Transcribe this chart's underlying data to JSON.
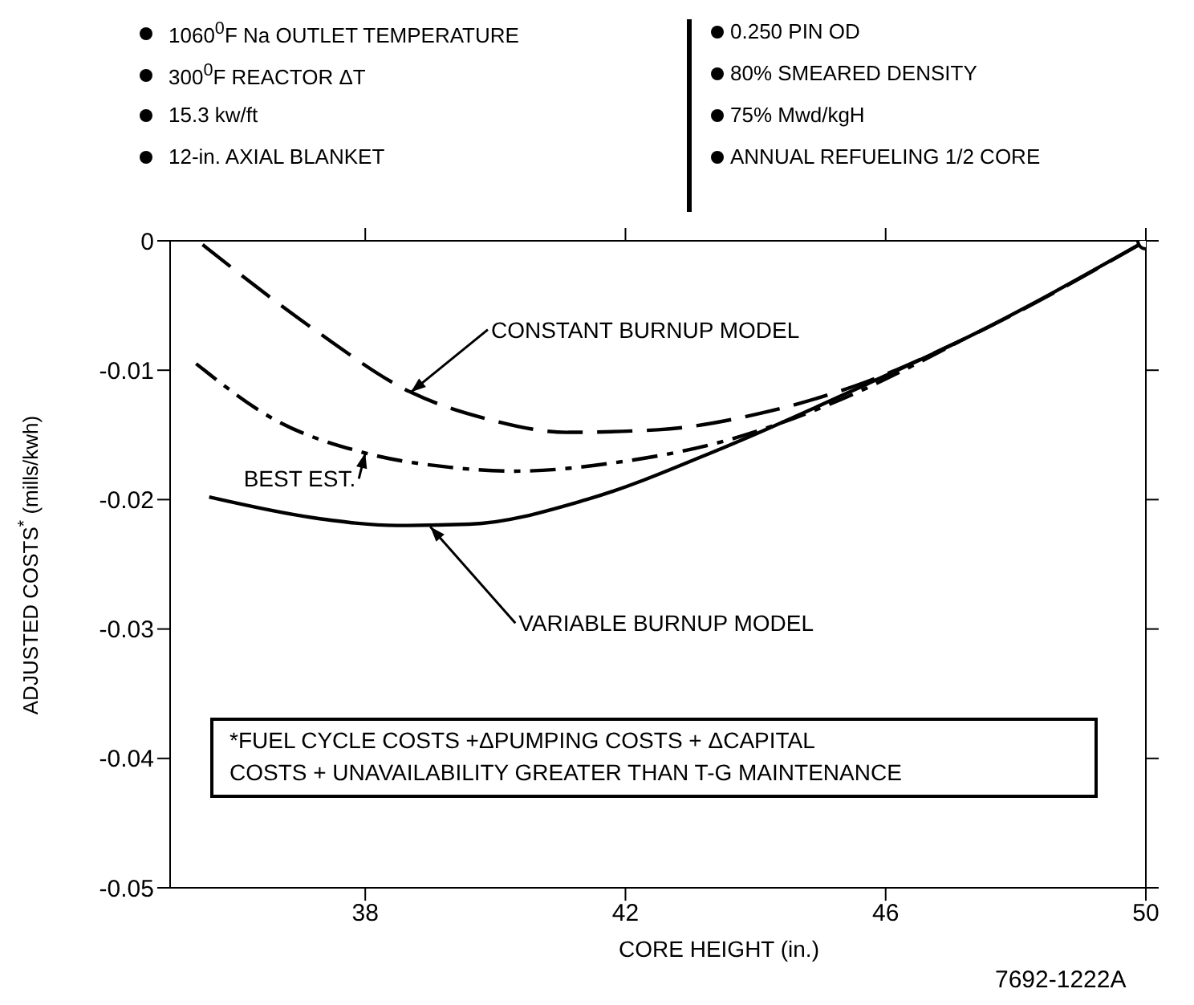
{
  "chart_data": {
    "type": "line",
    "xlabel": "CORE HEIGHT (in.)",
    "ylabel": "ADJUSTED COSTS$^{*}$ (mills/kwh)",
    "xlim": [
      35,
      50
    ],
    "xticks": [
      38,
      42,
      46,
      50
    ],
    "ylim": [
      -0.05,
      0
    ],
    "yticks": [
      -0.05,
      -0.04,
      -0.03,
      -0.02,
      -0.01,
      0
    ],
    "series": [
      {
        "color": "#000000",
        "line_style": "dashed",
        "x": [
          35.5,
          37.2,
          38.7,
          39.9,
          41.1,
          42.5,
          44.1,
          45.7,
          47.2,
          50
        ],
        "values": [
          -0.0003,
          -0.0068,
          -0.0117,
          -0.0138,
          -0.0148,
          -0.0146,
          -0.0133,
          -0.0109,
          -0.0076,
          0
        ]
      },
      {
        "color": "#000000",
        "line_style": "dashdot",
        "x": [
          35.4,
          36.6,
          38.0,
          39.3,
          40.3,
          41.9,
          43.5,
          45.2,
          47.2
        ],
        "values": [
          -0.0095,
          -0.0138,
          -0.0164,
          -0.0175,
          -0.0178,
          -0.0171,
          -0.0155,
          -0.0125,
          -0.0076
        ]
      },
      {
        "color": "#000000",
        "line_style": "solid",
        "x": [
          35.6,
          37.2,
          38.5,
          39.6,
          41.4,
          43.5,
          45.7,
          47.2,
          50
        ],
        "values": [
          -0.0198,
          -0.0214,
          -0.022,
          -0.0219,
          -0.02,
          -0.016,
          -0.0111,
          -0.0076,
          0
        ]
      },
      {
        "type": "scatter",
        "color": "#000000",
        "marker": "circle",
        "x": [
          50
        ],
        "values": [
          0
        ]
      }
    ],
    "annotations": [
      "1060$^{0}$F Na OUTLET TEMPERATURE",
      "300$^{0}$F REACTOR ΔT",
      "15.3 kw/ft",
      "12-in. AXIAL BLANKET",
      "0.250 PIN OD",
      "80% SMEARED DENSITY",
      "75% Mwd/kgH",
      "ANNUAL REFUELING 1/2 CORE",
      "*FUEL CYCLE COSTS +ΔPUMPING COSTS + ΔCAPITAL\nCOSTS + UNAVAILABILITY GREATER THAN T-G MAINTENANCE",
      "7692-1222A",
      {
        "text": "CONSTANT BURNUP MODEL",
        "x": 38.7,
        "y": -0.0117
      },
      {
        "text": "BEST EST.",
        "x": 38.0,
        "y": -0.0164
      },
      {
        "text": "VARIABLE BURNUP MODEL",
        "x": 39.0,
        "y": -0.0221
      }
    ]
  }
}
